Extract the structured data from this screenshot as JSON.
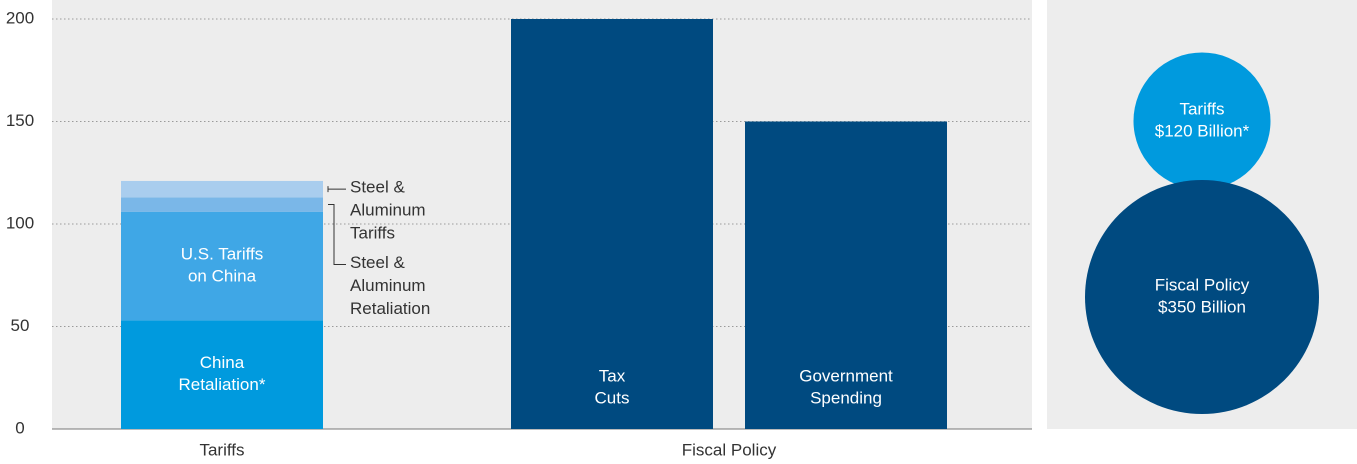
{
  "chart_data": [
    {
      "type": "bar",
      "ylim": [
        0,
        200
      ],
      "yticks": [
        0,
        50,
        100,
        150,
        200
      ],
      "grid": "dotted-horizontal",
      "groups": [
        "Tariffs",
        "Fiscal Policy"
      ],
      "stack": {
        "group": "Tariffs",
        "segments": [
          {
            "id": "china-retaliation",
            "label_lines": [
              "China",
              "Retaliation*"
            ],
            "value": 53,
            "color": "#009ADE",
            "label_position": "inside"
          },
          {
            "id": "us-tariffs-on-china",
            "label_lines": [
              "U.S. Tariffs",
              "on China"
            ],
            "value": 53,
            "color": "#3FA7E6",
            "label_position": "inside"
          },
          {
            "id": "steel-aluminum-retaliation",
            "label_lines": [
              "Steel &",
              "Aluminum",
              "Retaliation"
            ],
            "value": 7,
            "color": "#7AB7E8",
            "label_position": "outside"
          },
          {
            "id": "steel-aluminum-tariffs",
            "label_lines": [
              "Steel &",
              "Aluminum",
              "Tariffs"
            ],
            "value": 8,
            "color": "#A9CDEE",
            "label_position": "outside"
          }
        ]
      },
      "bars": [
        {
          "id": "tax-cuts",
          "group": "Fiscal Policy",
          "label_lines": [
            "Tax",
            "Cuts"
          ],
          "value": 200,
          "color": "#004A80"
        },
        {
          "id": "government-spending",
          "group": "Fiscal Policy",
          "label_lines": [
            "Government",
            "Spending"
          ],
          "value": 150,
          "color": "#004A80"
        }
      ]
    },
    {
      "type": "bubble",
      "bubbles": [
        {
          "id": "tariffs-bubble",
          "label_lines": [
            "Tariffs",
            "$120 Billion*"
          ],
          "value": 120,
          "color": "#009ADE"
        },
        {
          "id": "fiscal-policy-bubble",
          "label_lines": [
            "Fiscal Policy",
            "$350 Billion"
          ],
          "value": 350,
          "color": "#004A80"
        }
      ]
    }
  ]
}
